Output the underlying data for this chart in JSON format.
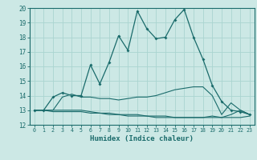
{
  "title": "",
  "xlabel": "Humidex (Indice chaleur)",
  "background_color": "#cce8e5",
  "line_color": "#1a6b6b",
  "grid_color": "#aad4d0",
  "xlim": [
    -0.5,
    23.5
  ],
  "ylim": [
    12,
    20
  ],
  "yticks": [
    12,
    13,
    14,
    15,
    16,
    17,
    18,
    19,
    20
  ],
  "xticks": [
    0,
    1,
    2,
    3,
    4,
    5,
    6,
    7,
    8,
    9,
    10,
    11,
    12,
    13,
    14,
    15,
    16,
    17,
    18,
    19,
    20,
    21,
    22,
    23
  ],
  "series": [
    [
      13.0,
      13.0,
      13.9,
      14.2,
      14.0,
      14.0,
      16.1,
      14.8,
      16.3,
      18.1,
      17.1,
      19.8,
      18.6,
      17.9,
      18.0,
      19.2,
      19.9,
      18.0,
      16.5,
      14.7,
      13.6,
      13.0,
      12.9,
      12.7
    ],
    [
      13.0,
      13.0,
      13.0,
      13.9,
      14.1,
      13.9,
      13.9,
      13.8,
      13.8,
      13.7,
      13.8,
      13.9,
      13.9,
      14.0,
      14.2,
      14.4,
      14.5,
      14.6,
      14.6,
      14.0,
      12.7,
      13.5,
      13.0,
      12.7
    ],
    [
      13.0,
      13.0,
      12.9,
      12.9,
      12.9,
      12.9,
      12.8,
      12.8,
      12.7,
      12.7,
      12.6,
      12.6,
      12.6,
      12.5,
      12.5,
      12.5,
      12.5,
      12.5,
      12.5,
      12.5,
      12.5,
      12.5,
      12.5,
      12.6
    ],
    [
      13.0,
      13.0,
      13.0,
      13.0,
      13.0,
      13.0,
      12.9,
      12.8,
      12.8,
      12.7,
      12.7,
      12.7,
      12.6,
      12.6,
      12.6,
      12.5,
      12.5,
      12.5,
      12.5,
      12.6,
      12.5,
      12.7,
      13.0,
      12.7
    ]
  ]
}
